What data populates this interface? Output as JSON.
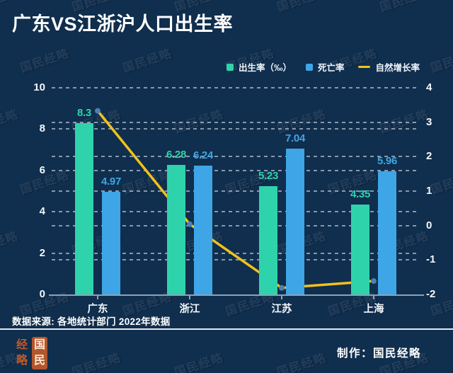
{
  "meta": {
    "title": "广东VS江浙沪人口出生率"
  },
  "chart_data": {
    "type": "bar",
    "title": "广东VS江浙沪人口出生率",
    "categories": [
      "广东",
      "浙江",
      "江苏",
      "上海"
    ],
    "series": [
      {
        "name": "出生率（‰）",
        "type": "bar",
        "axis": "left",
        "color": "#2fd3ab",
        "values": [
          8.3,
          6.28,
          5.23,
          4.35
        ]
      },
      {
        "name": "死亡率",
        "type": "bar",
        "axis": "left",
        "color": "#3ea6e6",
        "values": [
          4.97,
          6.24,
          7.04,
          5.96
        ]
      },
      {
        "name": "自然增长率",
        "type": "line",
        "axis": "right",
        "color": "#f1c21b",
        "marker_color": "#4d7fb3",
        "values": [
          3.33,
          0.04,
          -1.81,
          -1.61
        ]
      }
    ],
    "left_axis": {
      "min": 0,
      "max": 10,
      "ticks": [
        10,
        8,
        6,
        4,
        2,
        0
      ]
    },
    "right_axis": {
      "min": -2,
      "max": 4,
      "ticks": [
        4,
        3,
        2,
        1,
        0,
        -1,
        -2
      ]
    },
    "grid": "horizontal dashed lines for both axes",
    "legend_position": "top-right"
  },
  "source_note": "数据来源: 各地统计部门 2022年数据",
  "footer": {
    "credit_label": "制作：国民经略"
  },
  "logo": {
    "left_top": "经",
    "left_bottom": "略",
    "right_top": "国",
    "right_bottom": "民"
  },
  "watermark_text": "国民经略",
  "colors": {
    "background": "#102e4d",
    "birth_rate": "#2fd3ab",
    "death_rate": "#3ea6e6",
    "growth_rate_line": "#f1c21b",
    "line_marker": "#4d7fb3",
    "axis_line": "#8ba3b8",
    "logo_seal": "#b4552b"
  }
}
